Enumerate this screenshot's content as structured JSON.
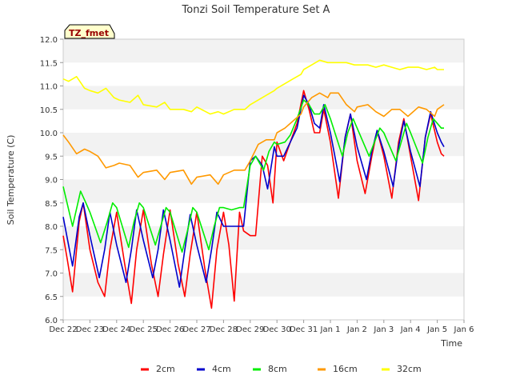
{
  "chart_data": {
    "type": "line",
    "title": "Tonzi Soil Temperature Set A",
    "xlabel": "Time",
    "ylabel": "Soil Temperature (C)",
    "ylim": [
      6.0,
      12.0
    ],
    "xlim": [
      0,
      15
    ],
    "yticks": [
      "6.0",
      "6.5",
      "7.0",
      "7.5",
      "8.0",
      "8.5",
      "9.0",
      "9.5",
      "10.0",
      "10.5",
      "11.0",
      "11.5",
      "12.0"
    ],
    "xticks": [
      "Dec 22",
      "Dec 23",
      "Dec 24",
      "Dec 25",
      "Dec 26",
      "Dec 27",
      "Dec 28",
      "Dec 29",
      "Dec 30",
      "Dec 31",
      "Jan 1",
      "Jan 2",
      "Jan 3",
      "Jan 4",
      "Jan 5",
      "Jan 6"
    ],
    "grid": "alternating horizontal bands",
    "legend_position": "bottom",
    "badge": "TZ_fmet",
    "series": [
      {
        "name": "2cm",
        "color": "#ff0000",
        "x": [
          0.0,
          0.15,
          0.35,
          0.6,
          0.75,
          1.0,
          1.3,
          1.55,
          1.75,
          2.0,
          2.3,
          2.55,
          2.75,
          3.0,
          3.3,
          3.55,
          3.75,
          4.0,
          4.3,
          4.55,
          4.75,
          5.0,
          5.3,
          5.55,
          5.75,
          6.0,
          6.2,
          6.4,
          6.6,
          6.75,
          7.0,
          7.2,
          7.45,
          7.65,
          7.85,
          8.0,
          8.25,
          8.5,
          8.75,
          9.0,
          9.2,
          9.4,
          9.6,
          9.75,
          10.0,
          10.3,
          10.55,
          10.75,
          11.0,
          11.3,
          11.55,
          11.75,
          12.0,
          12.3,
          12.55,
          12.75,
          13.0,
          13.3,
          13.55,
          13.75,
          14.0,
          14.15,
          14.25
        ],
        "y": [
          7.8,
          7.3,
          6.6,
          8.1,
          8.5,
          7.5,
          6.8,
          6.5,
          7.5,
          8.3,
          7.2,
          6.35,
          7.5,
          8.35,
          7.2,
          6.5,
          7.4,
          8.35,
          7.2,
          6.5,
          7.4,
          8.3,
          7.1,
          6.25,
          7.5,
          8.3,
          7.6,
          6.4,
          8.3,
          7.9,
          7.8,
          7.8,
          9.5,
          9.3,
          8.5,
          9.8,
          9.4,
          9.8,
          10.2,
          10.9,
          10.5,
          10.0,
          10.0,
          10.5,
          9.8,
          8.6,
          9.9,
          10.4,
          9.4,
          8.7,
          9.5,
          10.05,
          9.5,
          8.6,
          9.8,
          10.3,
          9.5,
          8.55,
          9.9,
          10.4,
          9.8,
          9.55,
          9.5
        ]
      },
      {
        "name": "4cm",
        "color": "#0000cc",
        "x": [
          0.0,
          0.35,
          0.6,
          0.75,
          1.0,
          1.35,
          1.55,
          1.75,
          2.0,
          2.35,
          2.55,
          2.75,
          3.0,
          3.35,
          3.55,
          3.75,
          4.0,
          4.35,
          4.55,
          4.75,
          5.0,
          5.35,
          5.55,
          5.75,
          6.0,
          6.3,
          6.6,
          6.75,
          7.0,
          7.2,
          7.45,
          7.65,
          7.9,
          8.0,
          8.25,
          8.5,
          8.75,
          9.0,
          9.2,
          9.4,
          9.6,
          9.75,
          10.0,
          10.35,
          10.55,
          10.75,
          11.0,
          11.35,
          11.55,
          11.75,
          12.0,
          12.35,
          12.55,
          12.75,
          13.0,
          13.35,
          13.55,
          13.75,
          14.0,
          14.15,
          14.25
        ],
        "y": [
          8.2,
          7.15,
          8.2,
          8.5,
          7.8,
          6.9,
          7.5,
          8.3,
          7.6,
          6.8,
          7.5,
          8.35,
          7.7,
          6.9,
          7.5,
          8.35,
          7.7,
          6.7,
          7.5,
          8.25,
          7.6,
          6.8,
          7.5,
          8.3,
          8.0,
          8.0,
          8.0,
          8.0,
          9.4,
          9.5,
          9.3,
          8.8,
          9.7,
          9.5,
          9.5,
          9.8,
          10.1,
          10.8,
          10.6,
          10.2,
          10.1,
          10.6,
          10.0,
          8.95,
          9.9,
          10.4,
          9.7,
          9.0,
          9.6,
          10.05,
          9.6,
          8.85,
          9.7,
          10.25,
          9.6,
          8.85,
          9.9,
          10.45,
          10.0,
          9.8,
          9.7
        ]
      },
      {
        "name": "8cm",
        "color": "#00ee00",
        "x": [
          0.0,
          0.35,
          0.65,
          0.85,
          1.0,
          1.4,
          1.65,
          1.85,
          2.0,
          2.45,
          2.65,
          2.85,
          3.0,
          3.45,
          3.65,
          3.85,
          4.0,
          4.45,
          4.65,
          4.85,
          5.0,
          5.45,
          5.65,
          5.85,
          6.0,
          6.3,
          6.6,
          6.75,
          7.0,
          7.2,
          7.5,
          7.7,
          7.9,
          8.0,
          8.3,
          8.5,
          8.75,
          9.0,
          9.2,
          9.4,
          9.6,
          9.8,
          10.0,
          10.45,
          10.65,
          10.85,
          11.0,
          11.45,
          11.65,
          11.85,
          12.0,
          12.45,
          12.65,
          12.85,
          13.0,
          13.45,
          13.65,
          13.85,
          14.0,
          14.15,
          14.25
        ],
        "y": [
          8.85,
          8.0,
          8.75,
          8.5,
          8.3,
          7.65,
          8.1,
          8.5,
          8.4,
          7.55,
          8.1,
          8.5,
          8.4,
          7.6,
          8.0,
          8.4,
          8.3,
          7.45,
          7.9,
          8.4,
          8.3,
          7.5,
          8.0,
          8.4,
          8.4,
          8.35,
          8.4,
          8.4,
          9.3,
          9.5,
          9.2,
          9.6,
          9.8,
          9.75,
          9.8,
          9.95,
          10.3,
          10.7,
          10.6,
          10.4,
          10.4,
          10.6,
          10.3,
          9.5,
          10.0,
          10.3,
          10.1,
          9.5,
          9.8,
          10.1,
          10.0,
          9.4,
          9.8,
          10.2,
          10.0,
          9.35,
          9.9,
          10.3,
          10.2,
          10.1,
          10.1
        ]
      },
      {
        "name": "16cm",
        "color": "#ff9900",
        "x": [
          0.0,
          0.2,
          0.5,
          0.8,
          1.0,
          1.3,
          1.6,
          1.9,
          2.1,
          2.5,
          2.8,
          3.0,
          3.5,
          3.8,
          4.0,
          4.5,
          4.8,
          5.0,
          5.5,
          5.8,
          6.0,
          6.4,
          6.8,
          7.0,
          7.3,
          7.6,
          7.9,
          8.0,
          8.3,
          8.6,
          8.9,
          9.0,
          9.3,
          9.6,
          9.9,
          10.0,
          10.3,
          10.6,
          10.9,
          11.0,
          11.4,
          11.7,
          12.0,
          12.3,
          12.6,
          12.9,
          13.0,
          13.3,
          13.6,
          13.9,
          14.0,
          14.25
        ],
        "y": [
          9.95,
          9.8,
          9.55,
          9.65,
          9.6,
          9.5,
          9.25,
          9.3,
          9.35,
          9.3,
          9.05,
          9.15,
          9.2,
          9.0,
          9.15,
          9.2,
          8.9,
          9.05,
          9.1,
          8.9,
          9.1,
          9.2,
          9.2,
          9.4,
          9.75,
          9.85,
          9.85,
          10.0,
          10.1,
          10.25,
          10.4,
          10.55,
          10.75,
          10.85,
          10.75,
          10.85,
          10.85,
          10.6,
          10.45,
          10.55,
          10.6,
          10.45,
          10.35,
          10.5,
          10.5,
          10.35,
          10.4,
          10.55,
          10.5,
          10.35,
          10.5,
          10.6
        ]
      },
      {
        "name": "32cm",
        "color": "#ffff00",
        "x": [
          0.0,
          0.2,
          0.5,
          0.8,
          1.0,
          1.3,
          1.6,
          1.9,
          2.1,
          2.5,
          2.8,
          3.0,
          3.5,
          3.8,
          4.0,
          4.5,
          4.8,
          5.0,
          5.5,
          5.8,
          6.0,
          6.4,
          6.8,
          7.0,
          7.3,
          7.6,
          7.9,
          8.0,
          8.3,
          8.6,
          8.9,
          9.0,
          9.3,
          9.6,
          9.9,
          10.0,
          10.3,
          10.6,
          10.9,
          11.0,
          11.4,
          11.7,
          12.0,
          12.3,
          12.6,
          12.9,
          13.0,
          13.3,
          13.6,
          13.9,
          14.0,
          14.25
        ],
        "y": [
          11.15,
          11.1,
          11.2,
          10.95,
          10.9,
          10.85,
          10.95,
          10.75,
          10.7,
          10.65,
          10.8,
          10.6,
          10.55,
          10.65,
          10.5,
          10.5,
          10.45,
          10.55,
          10.4,
          10.45,
          10.4,
          10.5,
          10.5,
          10.6,
          10.7,
          10.8,
          10.9,
          10.95,
          11.05,
          11.15,
          11.25,
          11.35,
          11.45,
          11.55,
          11.5,
          11.5,
          11.5,
          11.5,
          11.45,
          11.45,
          11.45,
          11.4,
          11.45,
          11.4,
          11.35,
          11.4,
          11.4,
          11.4,
          11.35,
          11.4,
          11.35,
          11.35
        ]
      }
    ]
  }
}
